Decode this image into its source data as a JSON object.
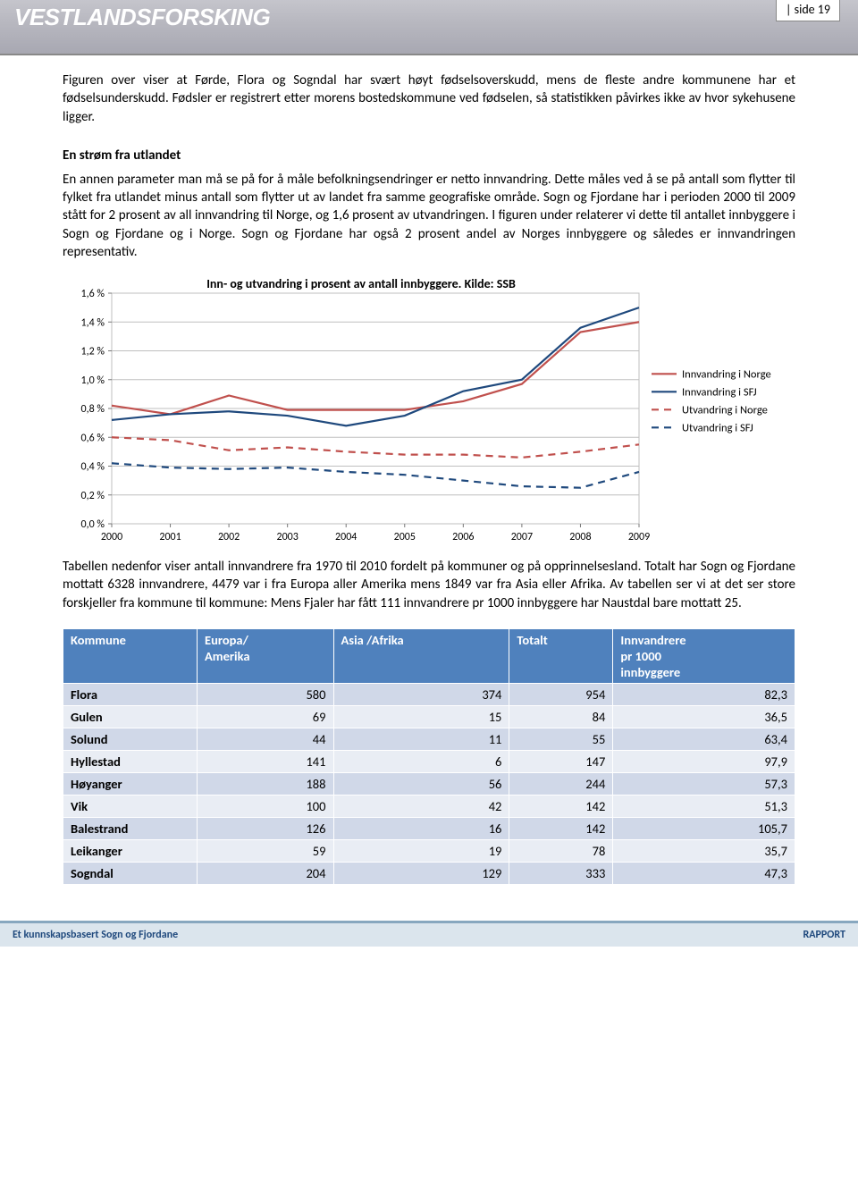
{
  "header": {
    "logo": "VESTLANDSFORSKING",
    "page_label": "|  side 19"
  },
  "intro_para": "Figuren over viser at Førde, Flora og Sogndal har svært høyt fødselsoverskudd, mens de fleste andre kommunene har et fødselsunderskudd. Fødsler er registrert etter morens bostedskommune ved fødselen, så statistikken påvirkes ikke av hvor sykehusene ligger.",
  "section_heading": "En strøm fra utlandet",
  "body_para": "En annen parameter man må se på for å måle befolkningsendringer er netto innvandring. Dette måles ved å se på antall som flytter til fylket fra utlandet minus antall som flytter ut av landet fra samme geografiske område. Sogn og Fjordane har i perioden 2000 til 2009 stått for 2 prosent av all innvandring til Norge, og 1,6 prosent av utvandringen. I figuren under relaterer vi dette til antallet innbyggere i Sogn og Fjordane og i Norge. Sogn og Fjordane har også 2 prosent andel av Norges innbyggere og således er innvandringen representativ.",
  "chart": {
    "type": "line",
    "title": "Inn- og utvandring i prosent av antall innbyggere.   Kilde: SSB",
    "x_years": [
      2000,
      2001,
      2002,
      2003,
      2004,
      2005,
      2006,
      2007,
      2008,
      2009
    ],
    "ylim": [
      0.0,
      1.6
    ],
    "ytick_step": 0.2,
    "ytick_labels": [
      "0,0 %",
      "0,2 %",
      "0,4 %",
      "0,6 %",
      "0,8 %",
      "1,0 %",
      "1,2 %",
      "1,4 %",
      "1,6 %"
    ],
    "series": [
      {
        "name": "Innvandring i Norge",
        "color": "#c0504d",
        "dash": "solid",
        "values": [
          0.82,
          0.76,
          0.89,
          0.79,
          0.79,
          0.79,
          0.85,
          0.97,
          1.33,
          1.4
        ]
      },
      {
        "name": "Innvandring i SFJ",
        "color": "#1f497d",
        "dash": "solid",
        "values": [
          0.72,
          0.76,
          0.78,
          0.75,
          0.68,
          0.75,
          0.92,
          1.0,
          1.36,
          1.5
        ]
      },
      {
        "name": "Utvandring i Norge",
        "color": "#c0504d",
        "dash": "dashed",
        "values": [
          0.6,
          0.58,
          0.51,
          0.53,
          0.5,
          0.48,
          0.48,
          0.46,
          0.5,
          0.55
        ]
      },
      {
        "name": "Utvandring i SFJ",
        "color": "#1f497d",
        "dash": "dashed",
        "values": [
          0.42,
          0.39,
          0.38,
          0.39,
          0.36,
          0.34,
          0.3,
          0.26,
          0.25,
          0.36
        ]
      }
    ],
    "plot_bg": "#ffffff",
    "grid_color": "#bfbfbf",
    "line_width": 2.2,
    "label_fontsize": 12
  },
  "after_chart_para": "Tabellen nedenfor viser antall innvandrere fra 1970 til 2010 fordelt på kommuner og på opprinnelsesland. Totalt har Sogn og Fjordane mottatt 6328 innvandrere, 4479 var i fra Europa aller Amerika mens 1849 var fra Asia eller Afrika. Av tabellen ser vi at det ser store forskjeller fra kommune til kommune: Mens Fjaler har fått 111 innvandrere pr 1000 innbyggere har Naustdal bare mottatt 25.",
  "table": {
    "columns": [
      "Kommune",
      "Europa/ Amerika",
      "Asia /Afrika",
      "Totalt",
      "Innvandrere pr 1000 innbyggere"
    ],
    "rows": [
      [
        "Flora",
        580,
        374,
        954,
        "82,3"
      ],
      [
        "Gulen",
        69,
        15,
        84,
        "36,5"
      ],
      [
        "Solund",
        44,
        11,
        55,
        "63,4"
      ],
      [
        "Hyllestad",
        141,
        6,
        147,
        "97,9"
      ],
      [
        "Høyanger",
        188,
        56,
        244,
        "57,3"
      ],
      [
        "Vik",
        100,
        42,
        142,
        "51,3"
      ],
      [
        "Balestrand",
        126,
        16,
        142,
        "105,7"
      ],
      [
        "Leikanger",
        59,
        19,
        78,
        "35,7"
      ],
      [
        "Sogndal",
        204,
        129,
        333,
        "47,3"
      ]
    ],
    "header_bg": "#4f81bd",
    "rowA_bg": "#d0d8e8",
    "rowB_bg": "#e9edf4"
  },
  "footer": {
    "left": "Et kunnskapsbasert Sogn og Fjordane",
    "right": "RAPPORT"
  }
}
